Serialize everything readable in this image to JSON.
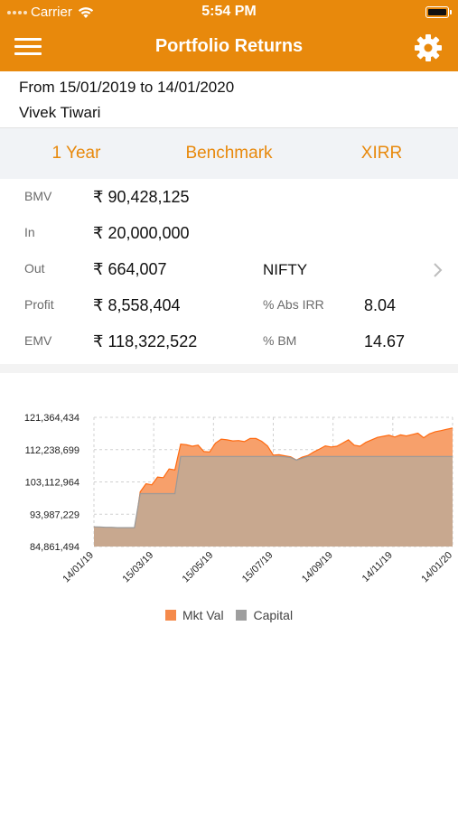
{
  "status_bar": {
    "carrier": "Carrier",
    "time": "5:54 PM"
  },
  "nav": {
    "title": "Portfolio Returns",
    "menu_icon": "hamburger-menu-icon",
    "settings_icon": "gear-icon"
  },
  "info": {
    "date_range": "From 15/01/2019 to 14/01/2020",
    "investor_name": "Vivek Tiwari"
  },
  "tabs": [
    {
      "label": "1 Year"
    },
    {
      "label": "Benchmark"
    },
    {
      "label": "XIRR"
    }
  ],
  "summary": {
    "bmv": {
      "label": "BMV",
      "value": "₹ 90,428,125"
    },
    "in": {
      "label": "In",
      "value": "₹ 20,000,000"
    },
    "out": {
      "label": "Out",
      "value": "₹ 664,007"
    },
    "benchmark_name": "NIFTY",
    "profit": {
      "label": "Profit",
      "value": "₹ 8,558,404"
    },
    "abs_irr": {
      "label": "% Abs IRR",
      "value": "8.04"
    },
    "emv": {
      "label": "EMV",
      "value": "₹ 118,322,522"
    },
    "bm": {
      "label": "% BM",
      "value": "14.67"
    }
  },
  "colors": {
    "accent": "#e8890c",
    "mkt_val_fill": "#f7a06b",
    "mkt_val_line": "#ff6a10",
    "capital_fill": "#c8a88f",
    "capital_line": "#999999"
  },
  "chart_data": {
    "type": "area",
    "ylim": [
      84861494,
      121364434
    ],
    "y_ticks": [
      "84,861,494",
      "93,987,229",
      "103,112,964",
      "112,238,699",
      "121,364,434"
    ],
    "x_ticks": [
      "14/01/19",
      "15/03/19",
      "15/05/19",
      "15/07/19",
      "14/09/19",
      "14/11/19",
      "14/01/20"
    ],
    "grid": true,
    "legend": "bottom",
    "series": [
      {
        "name": "Mkt Val",
        "values": [
          90428125,
          89800000,
          89400000,
          89200000,
          89700000,
          88500000,
          87900000,
          88800000,
          100300000,
          102600000,
          102300000,
          104500000,
          104300000,
          106800000,
          106500000,
          113800000,
          113600000,
          113200000,
          113500000,
          111700000,
          111600000,
          114100000,
          115200000,
          115000000,
          114700000,
          114800000,
          114500000,
          115400000,
          115400000,
          114600000,
          113300000,
          110700000,
          110800000,
          110500000,
          110200000,
          109300000,
          110100000,
          110600000,
          111600000,
          112400000,
          113300000,
          113000000,
          113200000,
          114100000,
          115000000,
          113500000,
          113200000,
          114300000,
          115000000,
          115700000,
          116000000,
          116300000,
          115800000,
          116400000,
          116100000,
          116500000,
          116900000,
          115600000,
          116700000,
          117300000,
          117600000,
          118000000,
          118322522
        ]
      },
      {
        "name": "Capital",
        "values": [
          90428125,
          90400000,
          90300000,
          90300000,
          90200000,
          90200000,
          90200000,
          90200000,
          99800000,
          99800000,
          99800000,
          99800000,
          99800000,
          99800000,
          99800000,
          110300000,
          110300000,
          110300000,
          110300000,
          110300000,
          110300000,
          110300000,
          110300000,
          110300000,
          110300000,
          110300000,
          110300000,
          110300000,
          110300000,
          110300000,
          110300000,
          110300000,
          110300000,
          110200000,
          110000000,
          109300000,
          109800000,
          110300000,
          110300000,
          110300000,
          110300000,
          110300000,
          110300000,
          110300000,
          110300000,
          110300000,
          110300000,
          110300000,
          110300000,
          110300000,
          110300000,
          110300000,
          110300000,
          110300000,
          110300000,
          110300000,
          110300000,
          110300000,
          110300000,
          110300000,
          110300000,
          110300000,
          110300000
        ]
      }
    ]
  }
}
